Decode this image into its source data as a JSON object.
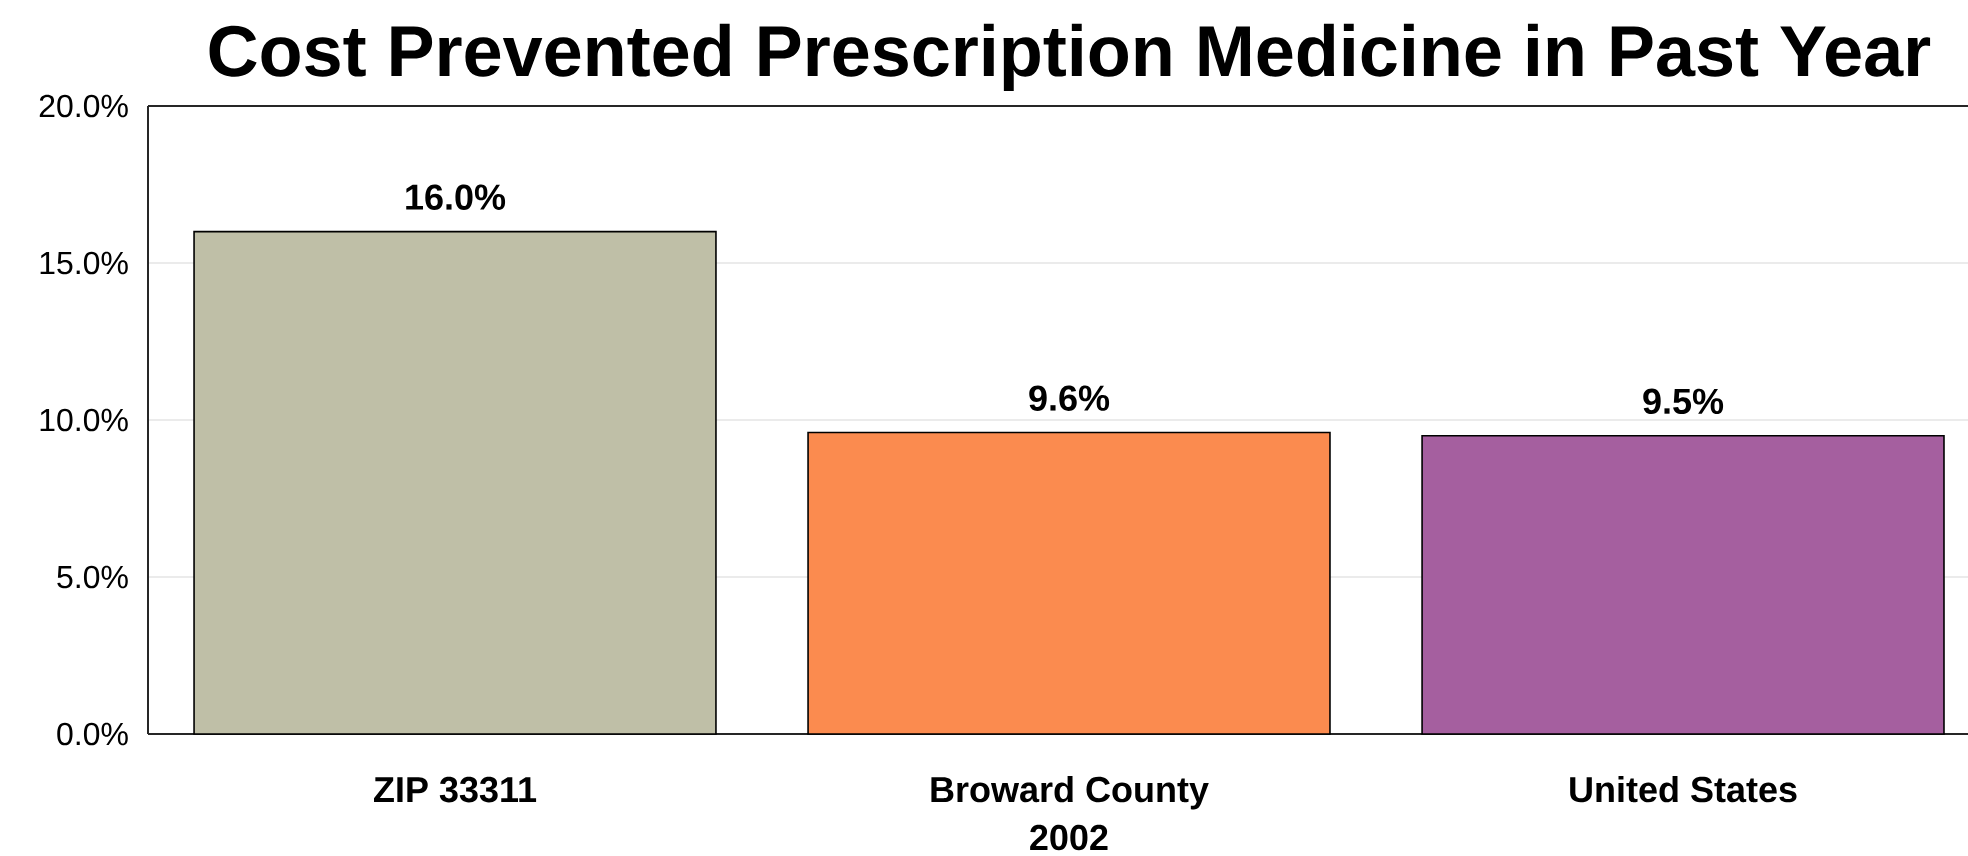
{
  "chart_data": {
    "type": "bar",
    "title": "Cost Prevented Prescription Medicine in Past Year",
    "xlabel": "2002",
    "categories": [
      "ZIP 33311",
      "Broward County",
      "United States"
    ],
    "values": [
      16.0,
      9.6,
      9.5
    ],
    "colors": [
      "#bfbfa7",
      "#fb8b4f",
      "#a55f9f"
    ],
    "value_labels": [
      "16.0%",
      "9.6%",
      "9.5%"
    ],
    "ylim": [
      0,
      20
    ],
    "yticks": [
      {
        "value": 0,
        "label": "0.0%"
      },
      {
        "value": 5,
        "label": "5.0%"
      },
      {
        "value": 10,
        "label": "10.0%"
      },
      {
        "value": 15,
        "label": "15.0%"
      },
      {
        "value": 20,
        "label": "20.0%"
      }
    ],
    "grid": "y"
  }
}
